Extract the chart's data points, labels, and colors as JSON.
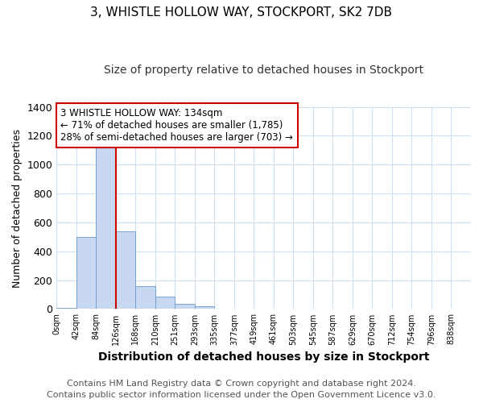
{
  "title": "3, WHISTLE HOLLOW WAY, STOCKPORT, SK2 7DB",
  "subtitle": "Size of property relative to detached houses in Stockport",
  "xlabel": "Distribution of detached houses by size in Stockport",
  "ylabel": "Number of detached properties",
  "bar_labels": [
    "0sqm",
    "42sqm",
    "84sqm",
    "126sqm",
    "168sqm",
    "210sqm",
    "251sqm",
    "293sqm",
    "335sqm",
    "377sqm",
    "419sqm",
    "461sqm",
    "503sqm",
    "545sqm",
    "587sqm",
    "629sqm",
    "670sqm",
    "712sqm",
    "754sqm",
    "796sqm",
    "838sqm"
  ],
  "bar_values": [
    10,
    500,
    1150,
    540,
    160,
    85,
    35,
    18,
    3,
    0,
    0,
    0,
    0,
    0,
    0,
    0,
    0,
    0,
    0,
    0,
    0
  ],
  "bar_color": "#c8d8f0",
  "bar_edge_color": "#6699cc",
  "vline_x_index": 3,
  "vline_color": "#cc0000",
  "ylim": [
    0,
    1400
  ],
  "yticks": [
    0,
    200,
    400,
    600,
    800,
    1000,
    1200,
    1400
  ],
  "annotation_title": "3 WHISTLE HOLLOW WAY: 134sqm",
  "annotation_line1": "← 71% of detached houses are smaller (1,785)",
  "annotation_line2": "28% of semi-detached houses are larger (703) →",
  "annotation_box_color": "#ffffff",
  "annotation_box_edge": "#cc0000",
  "footer1": "Contains HM Land Registry data © Crown copyright and database right 2024.",
  "footer2": "Contains public sector information licensed under the Open Government Licence v3.0.",
  "title_fontsize": 11,
  "subtitle_fontsize": 10,
  "xlabel_fontsize": 10,
  "ylabel_fontsize": 9,
  "footer_fontsize": 8,
  "background_color": "#ffffff",
  "grid_color": "#d0dfee"
}
